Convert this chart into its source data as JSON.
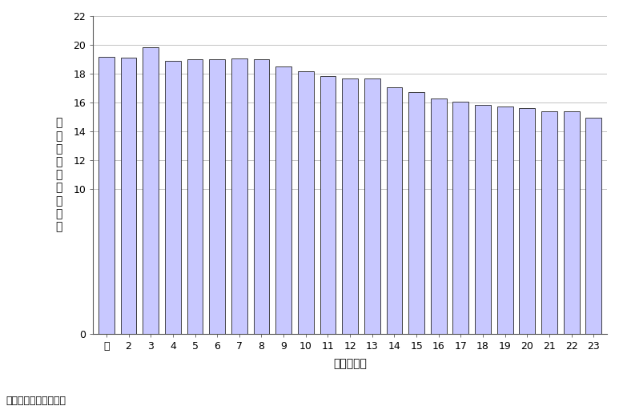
{
  "categories": [
    "元",
    "2",
    "3",
    "4",
    "5",
    "6",
    "7",
    "8",
    "9",
    "10",
    "11",
    "12",
    "13",
    "14",
    "15",
    "16",
    "17",
    "18",
    "19",
    "20",
    "21",
    "22",
    "23"
  ],
  "values": [
    19.2,
    19.1,
    19.85,
    18.9,
    19.0,
    19.0,
    19.05,
    19.0,
    18.5,
    18.15,
    17.85,
    17.65,
    17.65,
    17.05,
    16.75,
    16.3,
    16.05,
    15.85,
    15.75,
    15.6,
    15.4,
    15.4,
    14.95
  ],
  "bar_color": "#c8c8ff",
  "bar_edge_color": "#222222",
  "ylim": [
    0,
    22
  ],
  "yticks": [
    0,
    10,
    12,
    14,
    16,
    18,
    20,
    22
  ],
  "ylabel_chars": [
    "水",
    "防",
    "団",
    "員",
    "数",
    "（",
    "千",
    "人",
    "）"
  ],
  "xlabel": "年（平成）",
  "source": "出典：国土交通省資料",
  "background_color": "#ffffff",
  "bar_linewidth": 0.6,
  "grid_color": "#aaaaaa",
  "grid_linewidth": 0.5
}
